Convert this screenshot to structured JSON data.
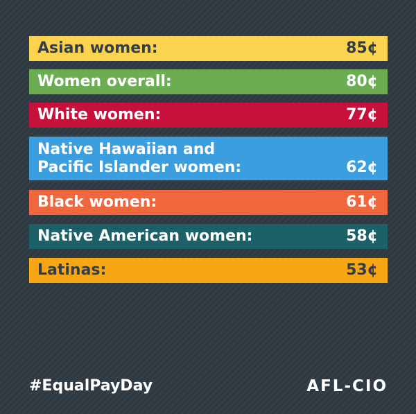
{
  "bars": [
    {
      "label": "Asian women:",
      "value": "85¢",
      "color": "#fbd34f",
      "text_color": "#333d46"
    },
    {
      "label": "Women overall:",
      "value": "80¢",
      "color": "#6aad52",
      "text_color": "#ffffff"
    },
    {
      "label": "White women:",
      "value": "77¢",
      "color": "#c8103c",
      "text_color": "#ffffff"
    },
    {
      "label": "Native Hawaiian and\nPacific Islander women:",
      "value": "62¢",
      "color": "#3b9ede",
      "text_color": "#ffffff"
    },
    {
      "label": "Black women:",
      "value": "61¢",
      "color": "#f1673d",
      "text_color": "#ffffff"
    },
    {
      "label": "Native American women:",
      "value": "58¢",
      "color": "#1c6068",
      "text_color": "#ffffff"
    },
    {
      "label": "Latinas:",
      "value": "53¢",
      "color": "#f8a614",
      "text_color": "#333d46"
    }
  ],
  "footer": {
    "hashtag": "#EqualPayDay",
    "logo": "AFL-CIO"
  }
}
